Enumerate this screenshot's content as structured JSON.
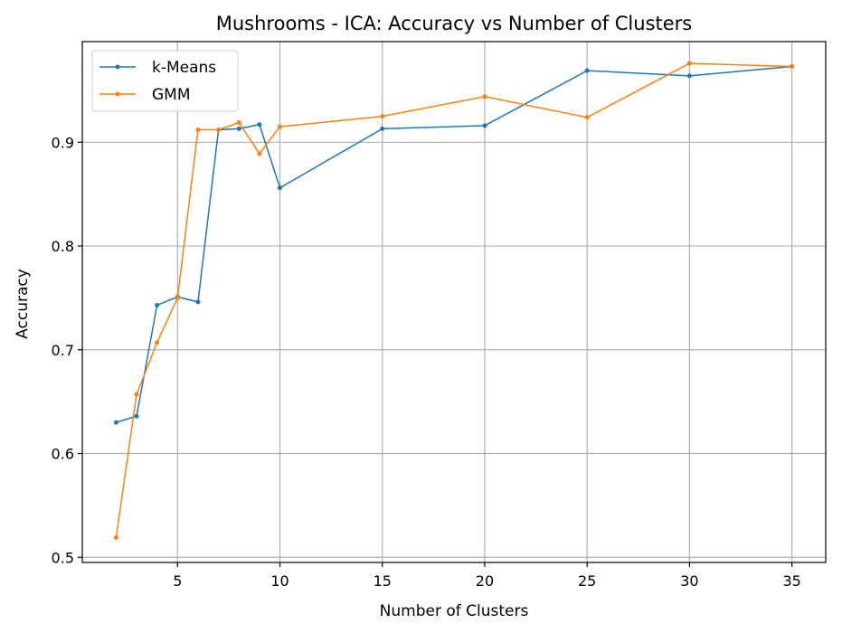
{
  "chart_data": {
    "type": "line",
    "title": "Mushrooms - ICA: Accuracy vs Number of Clusters",
    "xlabel": "Number of Clusters",
    "ylabel": "Accuracy",
    "xlim": [
      0.35,
      36.65
    ],
    "ylim": [
      0.495,
      0.997
    ],
    "xticks": [
      5,
      10,
      15,
      20,
      25,
      30,
      35
    ],
    "yticks": [
      0.5,
      0.6,
      0.7,
      0.8,
      0.9
    ],
    "ytick_labels": [
      "0.5",
      "0.6",
      "0.7",
      "0.8",
      "0.9"
    ],
    "grid": true,
    "legend_position": "top-left",
    "x": [
      2,
      3,
      4,
      5,
      6,
      7,
      8,
      9,
      10,
      15,
      20,
      25,
      30,
      35
    ],
    "series": [
      {
        "name": "k-Means",
        "color": "#1f77b4",
        "values": [
          0.63,
          0.636,
          0.743,
          0.751,
          0.746,
          0.912,
          0.913,
          0.917,
          0.856,
          0.913,
          0.916,
          0.969,
          0.964,
          0.973
        ]
      },
      {
        "name": "GMM",
        "color": "#ff7f0e",
        "values": [
          0.519,
          0.657,
          0.707,
          0.75,
          0.912,
          0.912,
          0.919,
          0.889,
          0.915,
          0.925,
          0.944,
          0.924,
          0.976,
          0.973
        ]
      }
    ]
  }
}
